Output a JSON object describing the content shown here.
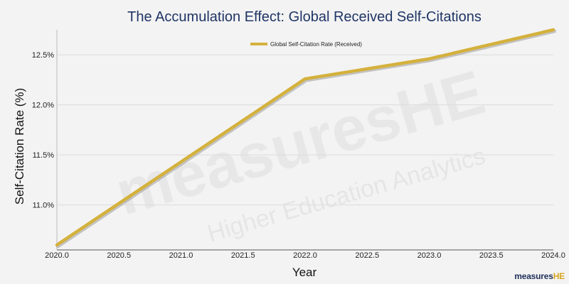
{
  "chart_data": {
    "type": "line",
    "title": "The Accumulation Effect: Global Received Self-Citations",
    "xlabel": "Year",
    "ylabel": "Self-Citation Rate (%)",
    "xlim": [
      2020.0,
      2024.0
    ],
    "ylim": [
      10.55,
      12.75
    ],
    "x_ticks": [
      "2020.0",
      "2020.5",
      "2021.0",
      "2021.5",
      "2022.0",
      "2022.5",
      "2023.0",
      "2023.5",
      "2024.0"
    ],
    "y_ticks": [
      "11.0%",
      "11.5%",
      "12.0%",
      "12.5%"
    ],
    "y_tick_values": [
      11.0,
      11.5,
      12.0,
      12.5
    ],
    "grid": "horizontal",
    "legend": "top-center",
    "series": [
      {
        "name": "Global Self-Citation Rate (Received)",
        "color": "#d4b13c",
        "x": [
          2020,
          2022,
          2023,
          2024
        ],
        "values": [
          10.6,
          12.26,
          12.46,
          12.75
        ]
      }
    ]
  },
  "watermark": {
    "main": "measuresHE",
    "sub": "Higher Education Analytics"
  },
  "logo": {
    "text": "measures",
    "accent": "HE"
  }
}
